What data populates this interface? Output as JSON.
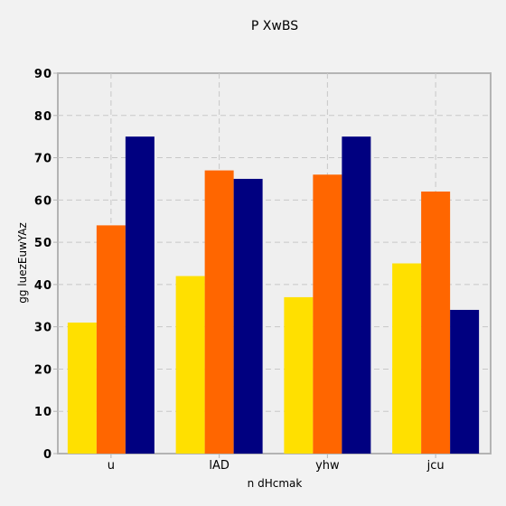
{
  "chart_data": {
    "type": "bar",
    "title": "P  XwBS",
    "xlabel": "n dHcmak",
    "ylabel": "gg luezEuwYAz",
    "categories": [
      "u",
      "lAD",
      "yhw",
      "jcu"
    ],
    "series": [
      {
        "values": [
          31,
          42,
          37,
          45
        ],
        "color": "#ffe000"
      },
      {
        "values": [
          54,
          67,
          66,
          62
        ],
        "color": "#ff6600"
      },
      {
        "values": [
          75,
          65,
          75,
          34
        ],
        "color": "#000080"
      }
    ],
    "ylim": [
      0,
      90
    ],
    "yticks": [
      "0",
      "10",
      "20",
      "30",
      "40",
      "50",
      "60",
      "70",
      "80",
      "90"
    ],
    "grid": true
  }
}
